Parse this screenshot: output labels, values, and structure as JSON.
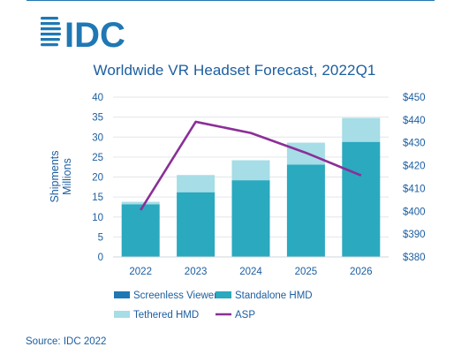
{
  "brand": {
    "logo_text": "IDC",
    "color": "#1c5ea0"
  },
  "source_note": "Source: IDC 2022",
  "chart_data": {
    "type": "bar",
    "title": "Worldwide VR Headset Forecast, 2022Q1",
    "ylabel": "Shipments Millions",
    "ylabel_lines": [
      "Shipments",
      "Millions"
    ],
    "y2label": "",
    "categories": [
      "2022",
      "2023",
      "2024",
      "2025",
      "2026"
    ],
    "ylim": [
      0,
      40
    ],
    "y_ticks": [
      "0",
      "5",
      "10",
      "15",
      "20",
      "25",
      "30",
      "35",
      "40"
    ],
    "y2lim": [
      380,
      450
    ],
    "y2_ticks": [
      "$380",
      "$390",
      "$400",
      "$410",
      "$420",
      "$430",
      "$440",
      "$450"
    ],
    "stacked": true,
    "grid": true,
    "legend_position": "bottom",
    "series": [
      {
        "name": "Screenless Viewer",
        "kind": "bar",
        "color": "#1f78b4",
        "values": [
          0,
          0,
          0,
          0,
          0
        ]
      },
      {
        "name": "Standalone HMD",
        "kind": "bar",
        "color": "#2aa9bf",
        "values": [
          13.2,
          16.2,
          19.2,
          23.1,
          28.8
        ]
      },
      {
        "name": "Tethered HMD",
        "kind": "bar",
        "color": "#a6dde6",
        "values": [
          0.6,
          4.3,
          5.0,
          5.5,
          6.0
        ]
      },
      {
        "name": "ASP",
        "kind": "line",
        "axis": "right",
        "color": "#8b2f97",
        "values": [
          400.5,
          439.2,
          434.3,
          425.6,
          415.7
        ]
      }
    ]
  }
}
